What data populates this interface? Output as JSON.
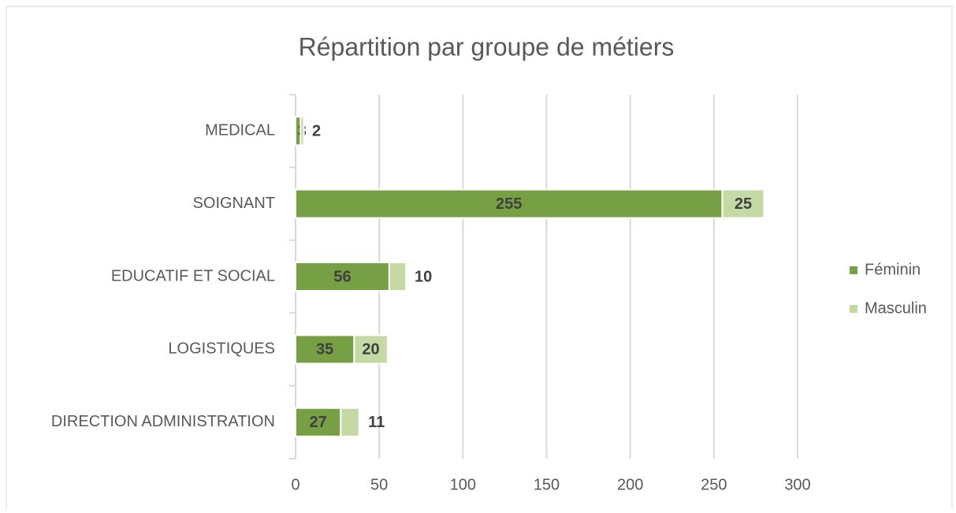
{
  "chart_data": {
    "type": "stacked_barh",
    "title": "Répartition par groupe de métiers",
    "categories": [
      "MEDICAL",
      "SOIGNANT",
      "EDUCATIF ET SOCIAL",
      "LOGISTIQUES",
      "DIRECTION ADMINISTRATION"
    ],
    "series": [
      {
        "name": "Féminin",
        "color": "#76a043",
        "values": [
          3,
          255,
          56,
          35,
          27
        ]
      },
      {
        "name": "Masculin",
        "color": "#c5d9a5",
        "values": [
          2,
          25,
          10,
          20,
          11
        ]
      }
    ],
    "xlim": [
      0,
      300
    ],
    "xticks": [
      0,
      50,
      100,
      150,
      200,
      250,
      300
    ],
    "grid": true,
    "legend": "right"
  }
}
